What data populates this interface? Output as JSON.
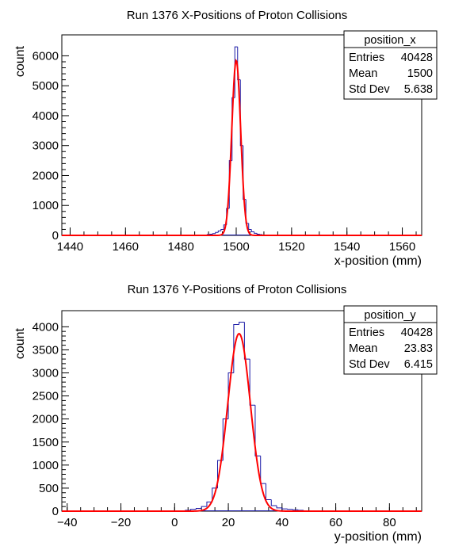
{
  "chart_data": [
    {
      "type": "histogram",
      "title": "Run 1376 X-Positions of Proton Collisions",
      "xlabel": "x-position (mm)",
      "ylabel": "count",
      "xlim": [
        1437,
        1567
      ],
      "ylim": [
        0,
        6700
      ],
      "xticks": [
        1440,
        1460,
        1480,
        1500,
        1520,
        1540,
        1560
      ],
      "yticks": [
        0,
        1000,
        2000,
        3000,
        4000,
        5000,
        6000
      ],
      "hist_color": "#1a1aa6",
      "fit_color": "#ff0000",
      "bins": [
        {
          "x": 1490.0,
          "count": 30
        },
        {
          "x": 1491.0,
          "count": 40
        },
        {
          "x": 1492.0,
          "count": 60
        },
        {
          "x": 1493.0,
          "count": 100
        },
        {
          "x": 1494.0,
          "count": 150
        },
        {
          "x": 1495.0,
          "count": 200
        },
        {
          "x": 1496.0,
          "count": 350
        },
        {
          "x": 1497.0,
          "count": 900
        },
        {
          "x": 1498.0,
          "count": 2500
        },
        {
          "x": 1499.0,
          "count": 4600
        },
        {
          "x": 1500.0,
          "count": 6300
        },
        {
          "x": 1501.0,
          "count": 5200
        },
        {
          "x": 1502.0,
          "count": 3000
        },
        {
          "x": 1503.0,
          "count": 1200
        },
        {
          "x": 1504.0,
          "count": 400
        },
        {
          "x": 1505.0,
          "count": 200
        },
        {
          "x": 1506.0,
          "count": 120
        },
        {
          "x": 1507.0,
          "count": 70
        },
        {
          "x": 1508.0,
          "count": 40
        },
        {
          "x": 1509.0,
          "count": 25
        }
      ],
      "bin_width": 1.0,
      "fit": {
        "amplitude": 5850,
        "mean": 1500.0,
        "sigma": 1.6
      },
      "stats": {
        "name": "position_x",
        "rows": [
          {
            "label": "Entries",
            "value": "40428"
          },
          {
            "label": "Mean",
            "value": "1500"
          },
          {
            "label": "Std Dev",
            "value": "5.638"
          }
        ]
      }
    },
    {
      "type": "histogram",
      "title": "Run 1376 Y-Positions of Proton Collisions",
      "xlabel": "y-position (mm)",
      "ylabel": "count",
      "xlim": [
        -42,
        92
      ],
      "ylim": [
        0,
        4350
      ],
      "xticks": [
        -40,
        -20,
        0,
        20,
        40,
        60,
        80
      ],
      "xtick_labels": [
        "−40",
        "−20",
        "0",
        "20",
        "40",
        "60",
        "80"
      ],
      "yticks": [
        0,
        500,
        1000,
        1500,
        2000,
        2500,
        3000,
        3500,
        4000
      ],
      "hist_color": "#1a1aa6",
      "fit_color": "#ff0000",
      "bins": [
        {
          "x": 5,
          "count": 20
        },
        {
          "x": 7,
          "count": 40
        },
        {
          "x": 9,
          "count": 60
        },
        {
          "x": 11,
          "count": 100
        },
        {
          "x": 13,
          "count": 200
        },
        {
          "x": 15,
          "count": 500
        },
        {
          "x": 17,
          "count": 1100
        },
        {
          "x": 19,
          "count": 2000
        },
        {
          "x": 21,
          "count": 3000
        },
        {
          "x": 23,
          "count": 4050
        },
        {
          "x": 25,
          "count": 4100
        },
        {
          "x": 27,
          "count": 3300
        },
        {
          "x": 29,
          "count": 2300
        },
        {
          "x": 31,
          "count": 1200
        },
        {
          "x": 33,
          "count": 600
        },
        {
          "x": 35,
          "count": 250
        },
        {
          "x": 37,
          "count": 120
        },
        {
          "x": 39,
          "count": 70
        },
        {
          "x": 41,
          "count": 50
        },
        {
          "x": 43,
          "count": 40
        },
        {
          "x": 45,
          "count": 30
        },
        {
          "x": 47,
          "count": 20
        }
      ],
      "bin_width": 2.0,
      "fit": {
        "amplitude": 3850,
        "mean": 24.0,
        "sigma": 4.2
      },
      "stats": {
        "name": "position_y",
        "rows": [
          {
            "label": "Entries",
            "value": "40428"
          },
          {
            "label": "Mean",
            "value": "23.83"
          },
          {
            "label": "Std Dev",
            "value": "6.415"
          }
        ]
      }
    }
  ]
}
